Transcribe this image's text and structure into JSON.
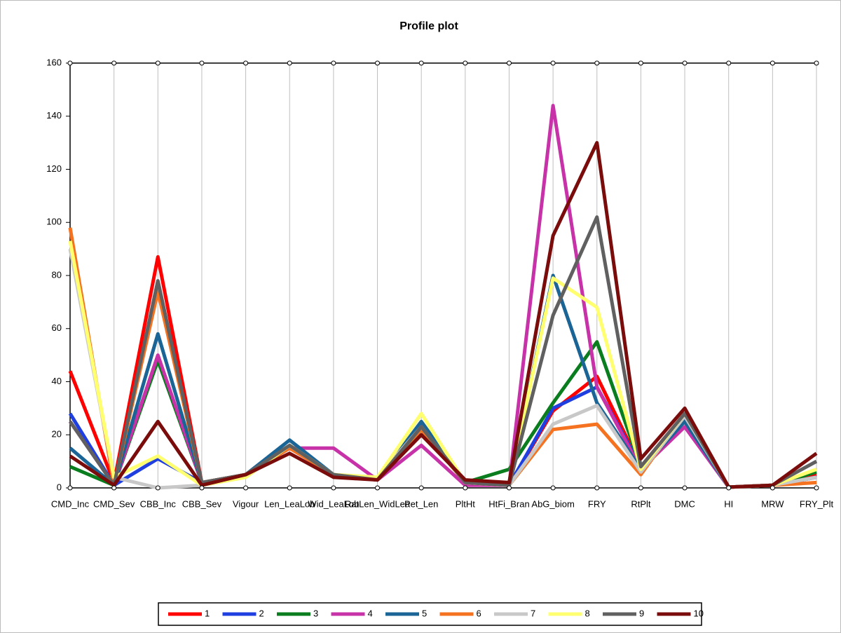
{
  "chart_data": {
    "type": "line",
    "title": "Profile plot",
    "categories": [
      "CMD_Inc",
      "CMD_Sev",
      "CBB_Inc",
      "CBB_Sev",
      "Vigour",
      "Len_LeaLob",
      "Wid_LeaLob",
      "RatLen_WidLea",
      "Pet_Len",
      "PltHt",
      "HtFi_Bran",
      "AbG_biom",
      "FRY",
      "RtPlt",
      "DMC",
      "HI",
      "MRW",
      "FRY_Plt"
    ],
    "series": [
      {
        "name": "1",
        "color": "#ff0000",
        "values": [
          44,
          2,
          87,
          2,
          5,
          15,
          5,
          3,
          22,
          2,
          1,
          29,
          42,
          8,
          28,
          0.3,
          1,
          5
        ]
      },
      {
        "name": "2",
        "color": "#1f3fe0",
        "values": [
          28,
          1,
          11,
          2,
          5,
          16,
          5,
          3,
          24,
          2,
          1,
          30,
          38,
          8,
          26,
          0.3,
          1,
          4
        ]
      },
      {
        "name": "3",
        "color": "#0a7d1e",
        "values": [
          8,
          1,
          48,
          2,
          5,
          16,
          5,
          3,
          22,
          2,
          7,
          32,
          55,
          8,
          27,
          0.3,
          1,
          6
        ]
      },
      {
        "name": "4",
        "color": "#c832a8",
        "values": [
          25,
          1,
          50,
          2,
          5,
          15,
          15,
          3,
          16,
          1,
          1,
          144,
          38,
          7,
          23,
          0.3,
          1,
          4
        ]
      },
      {
        "name": "5",
        "color": "#1a6496",
        "values": [
          15,
          1,
          58,
          2,
          5,
          18,
          5,
          3,
          25,
          2,
          1,
          80,
          32,
          7,
          25,
          0.3,
          1,
          4
        ]
      },
      {
        "name": "6",
        "color": "#f57320",
        "values": [
          98,
          1,
          74,
          2,
          5,
          15,
          5,
          3,
          22,
          2,
          1,
          22,
          24,
          5,
          28,
          0.3,
          1,
          2
        ]
      },
      {
        "name": "7",
        "color": "#c8c8c8",
        "values": [
          90,
          4,
          0,
          1,
          4,
          16,
          5,
          4,
          23,
          2,
          1,
          24,
          31,
          6,
          27,
          0.3,
          1,
          4
        ]
      },
      {
        "name": "8",
        "color": "#ffff70",
        "values": [
          93,
          4,
          12,
          1,
          4,
          16,
          5,
          4,
          28,
          2,
          1,
          79,
          68,
          7,
          28,
          0.3,
          1,
          7
        ]
      },
      {
        "name": "9",
        "color": "#606060",
        "values": [
          25,
          1,
          78,
          2,
          5,
          16,
          5,
          3,
          23,
          2,
          1,
          65,
          102,
          8,
          28,
          0.3,
          1,
          10
        ]
      },
      {
        "name": "10",
        "color": "#7a0c0c",
        "values": [
          12,
          1,
          25,
          1,
          5,
          13,
          4,
          3,
          20,
          3,
          2,
          95,
          130,
          11,
          30,
          0.3,
          1,
          13
        ]
      }
    ],
    "ylim": [
      0,
      160
    ],
    "yticks": [
      0,
      20,
      40,
      60,
      80,
      100,
      120,
      140,
      160
    ],
    "grid": true,
    "legend": "bottom"
  }
}
